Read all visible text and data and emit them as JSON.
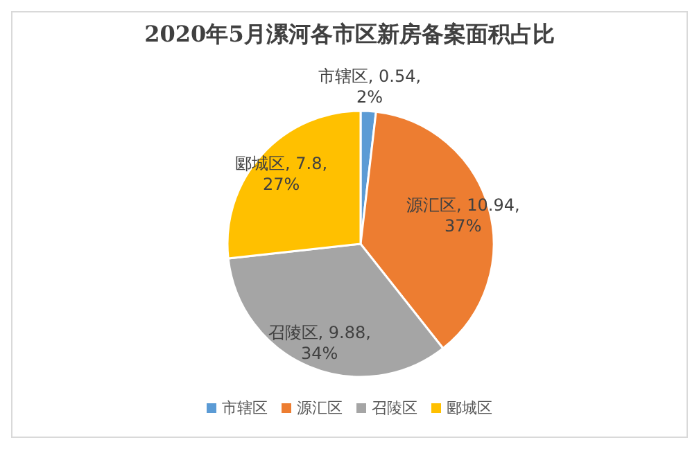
{
  "chart_data": {
    "type": "pie",
    "title": "2020年5月漯河各市区新房备案面积占比",
    "categories": [
      "市辖区",
      "源汇区",
      "召陵区",
      "郾城区"
    ],
    "values": [
      0.54,
      10.94,
      9.88,
      7.8
    ],
    "colors": [
      "#5b9bd5",
      "#ed7d31",
      "#a5a5a5",
      "#ffc000"
    ],
    "value_labels": [
      "市辖区, 0.54, 2%",
      "源汇区, 10.94, 37%",
      "召陵区, 9.88, 34%",
      "郾城区, 7.8, 27%"
    ],
    "legend": "bottom"
  }
}
